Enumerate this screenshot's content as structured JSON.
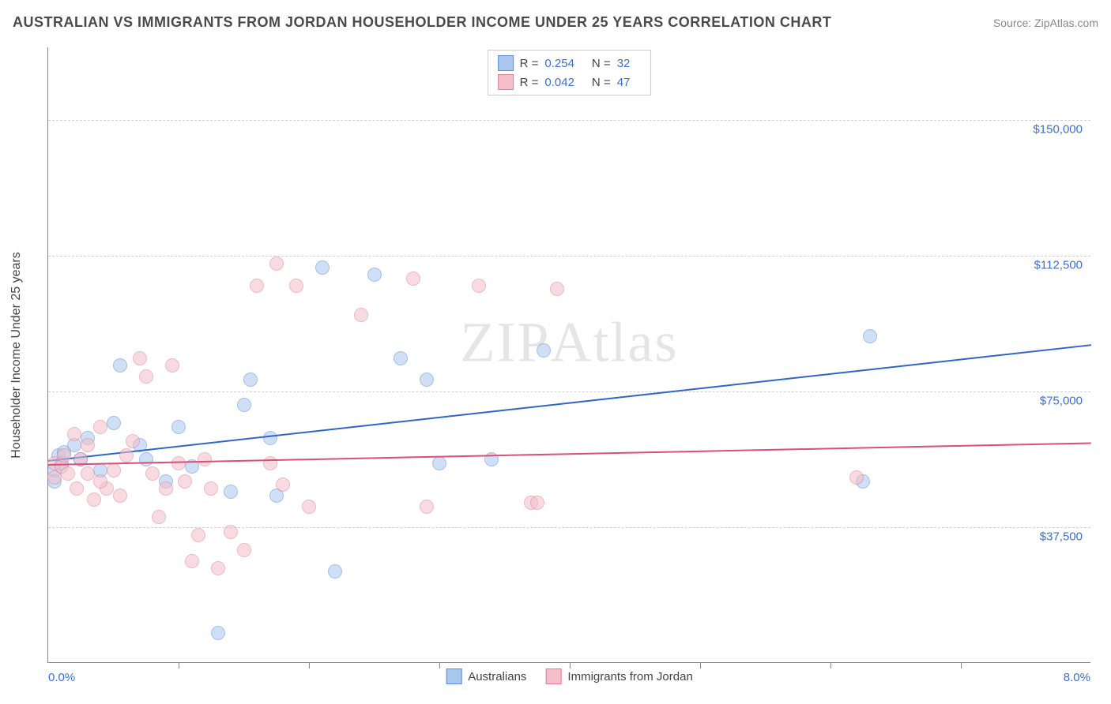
{
  "title": "AUSTRALIAN VS IMMIGRANTS FROM JORDAN HOUSEHOLDER INCOME UNDER 25 YEARS CORRELATION CHART",
  "source": "Source: ZipAtlas.com",
  "watermark": "ZIPAtlas",
  "chart": {
    "type": "scatter",
    "background_color": "#ffffff",
    "grid_color": "#d0d0d0",
    "axis_color": "#888888",
    "xlim": [
      0,
      8
    ],
    "ylim": [
      0,
      170000
    ],
    "x_tick_positions": [
      1,
      2,
      3,
      4,
      5,
      6,
      7
    ],
    "x_min_label": "0.0%",
    "x_max_label": "8.0%",
    "y_gridlines": [
      37500,
      75000,
      112500,
      150000
    ],
    "y_tick_labels": [
      "$37,500",
      "$75,000",
      "$112,500",
      "$150,000"
    ],
    "y_axis_title": "Householder Income Under 25 years",
    "label_color": "#3b6fd6",
    "label_fontsize": 15,
    "point_radius": 9,
    "point_opacity": 0.55,
    "series": [
      {
        "name": "Australians",
        "fill_color": "#a9c6ef",
        "stroke_color": "#5c8fd6",
        "trend_color": "#2f66c4",
        "R": "0.254",
        "N": "32",
        "trend": {
          "x1": 0,
          "y1": 56000,
          "x2": 8,
          "y2": 88000
        },
        "points": [
          [
            0.05,
            53000
          ],
          [
            0.05,
            50000
          ],
          [
            0.08,
            57000
          ],
          [
            0.1,
            55000
          ],
          [
            0.12,
            58000
          ],
          [
            0.2,
            60000
          ],
          [
            0.25,
            56000
          ],
          [
            0.3,
            62000
          ],
          [
            0.4,
            53000
          ],
          [
            0.5,
            66000
          ],
          [
            0.55,
            82000
          ],
          [
            0.7,
            60000
          ],
          [
            0.75,
            56000
          ],
          [
            0.9,
            50000
          ],
          [
            1.0,
            65000
          ],
          [
            1.1,
            54000
          ],
          [
            1.3,
            8000
          ],
          [
            1.4,
            47000
          ],
          [
            1.5,
            71000
          ],
          [
            1.55,
            78000
          ],
          [
            1.7,
            62000
          ],
          [
            1.75,
            46000
          ],
          [
            2.1,
            109000
          ],
          [
            2.2,
            25000
          ],
          [
            2.5,
            107000
          ],
          [
            2.7,
            84000
          ],
          [
            2.9,
            78000
          ],
          [
            3.0,
            55000
          ],
          [
            3.4,
            56000
          ],
          [
            3.8,
            86000
          ],
          [
            6.3,
            90000
          ],
          [
            6.25,
            50000
          ]
        ]
      },
      {
        "name": "Immigrants from Jordan",
        "fill_color": "#f4bfca",
        "stroke_color": "#e17f95",
        "trend_color": "#d94f77",
        "R": "0.042",
        "N": "47",
        "trend": {
          "x1": 0,
          "y1": 55000,
          "x2": 8,
          "y2": 61000
        },
        "points": [
          [
            0.05,
            55000
          ],
          [
            0.05,
            51000
          ],
          [
            0.1,
            54000
          ],
          [
            0.12,
            57000
          ],
          [
            0.15,
            52000
          ],
          [
            0.2,
            63000
          ],
          [
            0.22,
            48000
          ],
          [
            0.25,
            56000
          ],
          [
            0.3,
            60000
          ],
          [
            0.35,
            45000
          ],
          [
            0.4,
            65000
          ],
          [
            0.45,
            48000
          ],
          [
            0.5,
            53000
          ],
          [
            0.55,
            46000
          ],
          [
            0.6,
            57000
          ],
          [
            0.65,
            61000
          ],
          [
            0.7,
            84000
          ],
          [
            0.75,
            79000
          ],
          [
            0.8,
            52000
          ],
          [
            0.85,
            40000
          ],
          [
            0.9,
            48000
          ],
          [
            0.95,
            82000
          ],
          [
            1.0,
            55000
          ],
          [
            1.05,
            50000
          ],
          [
            1.1,
            28000
          ],
          [
            1.15,
            35000
          ],
          [
            1.2,
            56000
          ],
          [
            1.25,
            48000
          ],
          [
            1.3,
            26000
          ],
          [
            1.4,
            36000
          ],
          [
            1.5,
            31000
          ],
          [
            1.6,
            104000
          ],
          [
            1.7,
            55000
          ],
          [
            1.75,
            110000
          ],
          [
            1.8,
            49000
          ],
          [
            1.9,
            104000
          ],
          [
            2.0,
            43000
          ],
          [
            2.4,
            96000
          ],
          [
            2.8,
            106000
          ],
          [
            2.9,
            43000
          ],
          [
            3.3,
            104000
          ],
          [
            3.7,
            44000
          ],
          [
            3.75,
            44000
          ],
          [
            3.9,
            103000
          ],
          [
            6.2,
            51000
          ],
          [
            0.3,
            52000
          ],
          [
            0.4,
            50000
          ]
        ]
      }
    ],
    "legend_bottom": [
      {
        "label": "Australians",
        "fill": "#a9c6ef",
        "stroke": "#5c8fd6"
      },
      {
        "label": "Immigrants from Jordan",
        "fill": "#f4bfca",
        "stroke": "#e17f95"
      }
    ]
  }
}
